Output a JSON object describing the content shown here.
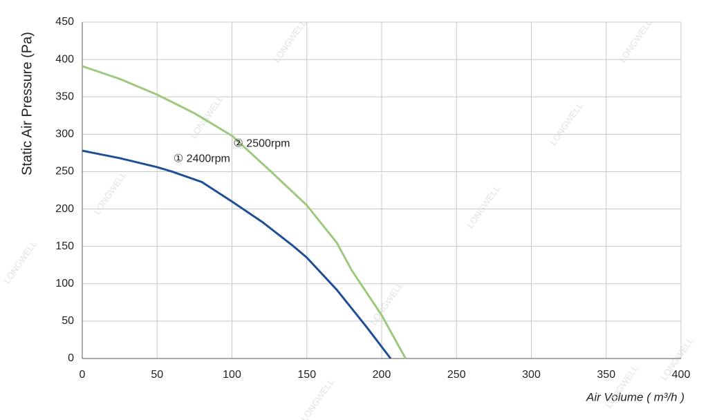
{
  "chart_data": {
    "type": "line",
    "xlabel": "Air Volume ( m³/h )",
    "ylabel": "Static Air Pressure  (Pa)",
    "watermark": "LONGWELL",
    "xlim": [
      0,
      400
    ],
    "xticks": [
      0,
      50,
      100,
      150,
      200,
      250,
      300,
      350,
      400
    ],
    "ylim": [
      0,
      450
    ],
    "yticks": [
      0,
      50,
      100,
      150,
      200,
      250,
      300,
      350,
      400,
      450
    ],
    "grid": true,
    "series": [
      {
        "name": "① 2400rpm",
        "color": "#1f4e96",
        "x": [
          0,
          25,
          50,
          60,
          80,
          100,
          120,
          140,
          150,
          170,
          190,
          206
        ],
        "values": [
          278,
          268,
          256,
          250,
          236,
          210,
          183,
          152,
          135,
          92,
          42,
          0
        ]
      },
      {
        "name": "② 2500rpm",
        "color": "#9dc97e",
        "x": [
          0,
          25,
          50,
          75,
          100,
          125,
          150,
          170,
          180,
          200,
          216
        ],
        "values": [
          391,
          374,
          353,
          328,
          298,
          252,
          205,
          155,
          118,
          58,
          0
        ]
      }
    ]
  }
}
